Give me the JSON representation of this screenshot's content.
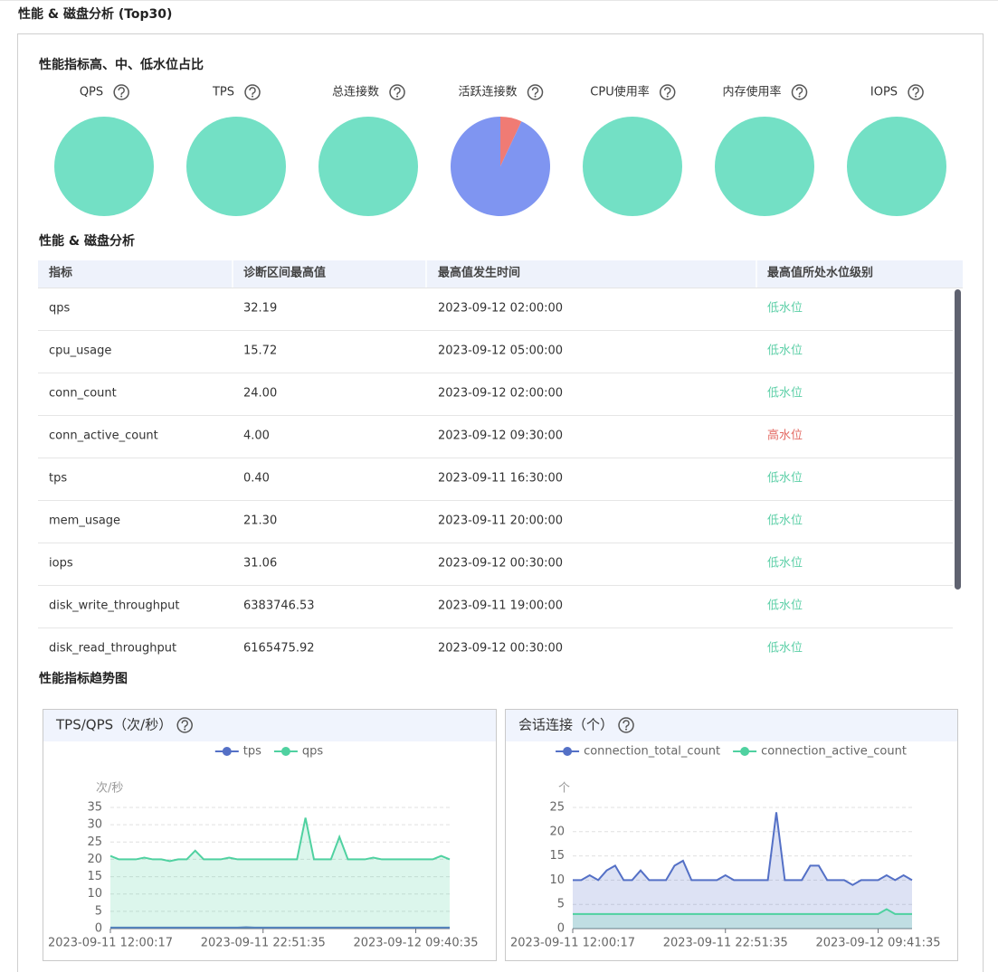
{
  "header": {
    "title": "性能 & 磁盘分析 (Top30)"
  },
  "ratio": {
    "title": "性能指标高、中、低水位占比"
  },
  "table": {
    "title": "性能 & 磁盘分析",
    "columns": [
      "指标",
      "诊断区间最高值",
      "最高值发生时间",
      "最高值所处水位级别"
    ],
    "rows": [
      [
        "qps",
        "32.19",
        "2023-09-12 02:00:00",
        "低水位"
      ],
      [
        "cpu_usage",
        "15.72",
        "2023-09-12 05:00:00",
        "低水位"
      ],
      [
        "conn_count",
        "24.00",
        "2023-09-12 02:00:00",
        "低水位"
      ],
      [
        "conn_active_count",
        "4.00",
        "2023-09-12 09:30:00",
        "高水位"
      ],
      [
        "tps",
        "0.40",
        "2023-09-11 16:30:00",
        "低水位"
      ],
      [
        "mem_usage",
        "21.30",
        "2023-09-11 20:00:00",
        "低水位"
      ],
      [
        "iops",
        "31.06",
        "2023-09-12 00:30:00",
        "低水位"
      ],
      [
        "disk_write_throughput",
        "6383746.53",
        "2023-09-11 19:00:00",
        "低水位"
      ],
      [
        "disk_read_throughput",
        "6165475.92",
        "2023-09-12 00:30:00",
        "低水位"
      ]
    ],
    "level_colors": [
      "#5ccfa7",
      "#5ccfa7",
      "#5ccfa7",
      "#e36a63",
      "#5ccfa7",
      "#5ccfa7",
      "#5ccfa7",
      "#5ccfa7",
      "#5ccfa7"
    ]
  },
  "trend": {
    "title": "性能指标趋势图"
  },
  "chart_data": [
    {
      "type": "pie",
      "title": "QPS",
      "values": [
        100
      ],
      "colors": [
        "#73e0c5"
      ]
    },
    {
      "type": "pie",
      "title": "TPS",
      "values": [
        100
      ],
      "colors": [
        "#73e0c5"
      ]
    },
    {
      "type": "pie",
      "title": "总连接数",
      "values": [
        100
      ],
      "colors": [
        "#73e0c5"
      ]
    },
    {
      "type": "pie",
      "title": "活跃连接数",
      "values": [
        7,
        93
      ],
      "colors": [
        "#f07b74",
        "#7f95f1"
      ]
    },
    {
      "type": "pie",
      "title": "CPU使用率",
      "values": [
        100
      ],
      "colors": [
        "#73e0c5"
      ]
    },
    {
      "type": "pie",
      "title": "内存使用率",
      "values": [
        100
      ],
      "colors": [
        "#73e0c5"
      ]
    },
    {
      "type": "pie",
      "title": "IOPS",
      "values": [
        100
      ],
      "colors": [
        "#73e0c5"
      ]
    },
    {
      "type": "line",
      "title": "TPS/QPS（次/秒）",
      "y_label": "次/秒",
      "categories": [
        "2023-09-11 12:00:17",
        null,
        null,
        null,
        null,
        null,
        null,
        null,
        null,
        null,
        null,
        null,
        null,
        null,
        null,
        null,
        null,
        null,
        "2023-09-11 22:51:35",
        null,
        null,
        null,
        null,
        null,
        null,
        null,
        null,
        null,
        null,
        null,
        null,
        null,
        null,
        null,
        null,
        null,
        "2023-09-12 09:40:35",
        null,
        null,
        null,
        null
      ],
      "ylim": [
        0,
        35
      ],
      "yticks": [
        0,
        5,
        10,
        15,
        20,
        25,
        30,
        35
      ],
      "grid": true,
      "series": [
        {
          "name": "tps",
          "color": "#5470c6",
          "area": false,
          "values": [
            0.3,
            0.3,
            0.3,
            0.3,
            0.3,
            0.3,
            0.3,
            0.3,
            0.3,
            0.3,
            0.3,
            0.3,
            0.3,
            0.3,
            0.3,
            0.3,
            0.4,
            0.3,
            0.3,
            0.3,
            0.3,
            0.3,
            0.3,
            0.3,
            0.3,
            0.3,
            0.3,
            0.3,
            0.3,
            0.3,
            0.3,
            0.3,
            0.3,
            0.3,
            0.3,
            0.3,
            0.3,
            0.3,
            0.3,
            0.3,
            0.3
          ]
        },
        {
          "name": "qps",
          "color": "#4fd1a0",
          "area": true,
          "values": [
            21,
            20,
            20,
            20,
            20.5,
            20,
            20,
            19.5,
            20,
            20,
            22.5,
            20,
            20,
            20,
            20.5,
            20,
            20,
            20,
            20,
            20,
            20,
            20,
            20,
            32,
            20,
            20,
            20,
            26.5,
            20,
            20,
            20,
            20.5,
            20,
            20,
            20,
            20,
            20,
            20,
            20,
            21,
            20
          ]
        }
      ]
    },
    {
      "type": "line",
      "title": "会话连接（个）",
      "y_label": "个",
      "categories": [
        "2023-09-11 12:00:17",
        null,
        null,
        null,
        null,
        null,
        null,
        null,
        null,
        null,
        null,
        null,
        null,
        null,
        null,
        null,
        null,
        null,
        "2023-09-11 22:51:35",
        null,
        null,
        null,
        null,
        null,
        null,
        null,
        null,
        null,
        null,
        null,
        null,
        null,
        null,
        null,
        null,
        null,
        "2023-09-12 09:41:35",
        null,
        null,
        null,
        null
      ],
      "ylim": [
        0,
        25
      ],
      "yticks": [
        0,
        5,
        10,
        15,
        20,
        25
      ],
      "grid": true,
      "series": [
        {
          "name": "connection_total_count",
          "color": "#5470c6",
          "area": true,
          "values": [
            10,
            10,
            11,
            10,
            12,
            13,
            10,
            10,
            12,
            10,
            10,
            10,
            13,
            14,
            10,
            10,
            10,
            10,
            11,
            10,
            10,
            10,
            10,
            10,
            24,
            10,
            10,
            10,
            13,
            13,
            10,
            10,
            10,
            9,
            10,
            10,
            10,
            11,
            10,
            11,
            10
          ]
        },
        {
          "name": "connection_active_count",
          "color": "#4fd1a0",
          "area": true,
          "values": [
            3,
            3,
            3,
            3,
            3,
            3,
            3,
            3,
            3,
            3,
            3,
            3,
            3,
            3,
            3,
            3,
            3,
            3,
            3,
            3,
            3,
            3,
            3,
            3,
            3,
            3,
            3,
            3,
            3,
            3,
            3,
            3,
            3,
            3,
            3,
            3,
            3,
            4,
            3,
            3,
            3
          ]
        }
      ]
    }
  ]
}
